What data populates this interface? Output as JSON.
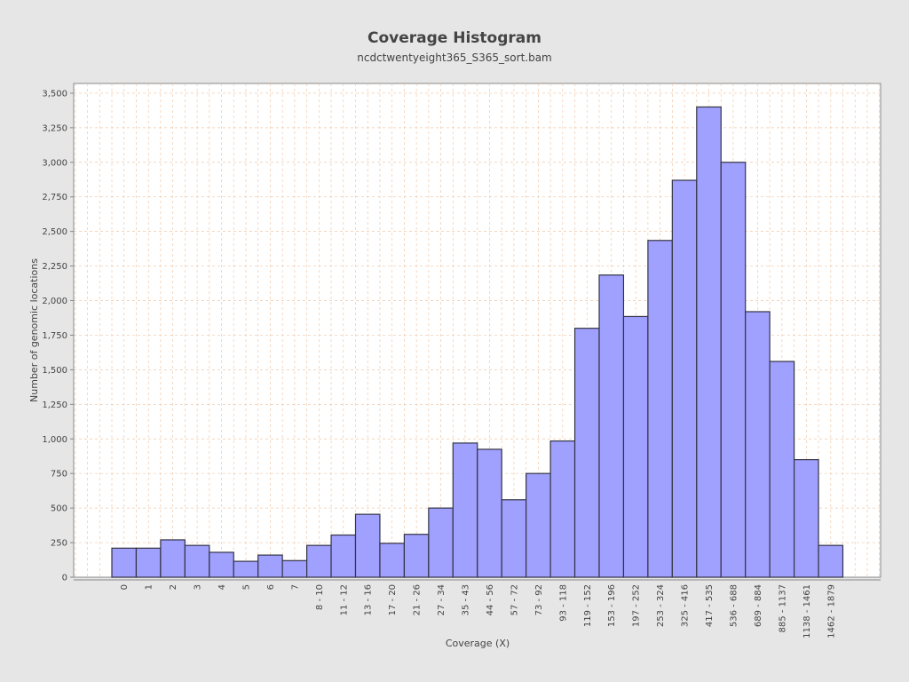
{
  "chart_data": {
    "type": "bar",
    "title": "Coverage Histogram",
    "subtitle": "ncdctwentyeight365_S365_sort.bam",
    "xlabel": "Coverage (X)",
    "ylabel": "Number of genomic locations",
    "ylim": [
      0,
      3570
    ],
    "yticks": [
      0,
      250,
      500,
      750,
      1000,
      1250,
      1500,
      1750,
      2000,
      2250,
      2500,
      2750,
      3000,
      3250,
      3500
    ],
    "ytick_labels": [
      "0",
      "250",
      "500",
      "750",
      "1,000",
      "1,250",
      "1,500",
      "1,750",
      "2,000",
      "2,250",
      "2,500",
      "2,750",
      "3,000",
      "3,250",
      "3,500"
    ],
    "grid": true,
    "categories": [
      "0",
      "1",
      "2",
      "3",
      "4",
      "5",
      "6",
      "7",
      "8 - 10",
      "11 - 12",
      "13 - 16",
      "17 - 20",
      "21 - 26",
      "27 - 34",
      "35 - 43",
      "44 - 56",
      "57 - 72",
      "73 - 92",
      "93 - 118",
      "119 - 152",
      "153 - 196",
      "197 - 252",
      "253 - 324",
      "325 - 416",
      "417 - 535",
      "536 - 688",
      "689 - 884",
      "885 - 1137",
      "1138 - 1461",
      "1462 - 1879"
    ],
    "values": [
      210,
      210,
      270,
      230,
      180,
      115,
      160,
      120,
      230,
      305,
      455,
      245,
      310,
      500,
      970,
      925,
      560,
      750,
      985,
      1800,
      2185,
      1885,
      2435,
      2870,
      3400,
      3000,
      1920,
      1560,
      850,
      230
    ],
    "colors": {
      "background": "#e6e6e6",
      "plot_background": "#ffffff",
      "bar_fill": "#a0a0ff",
      "bar_stroke": "#333344",
      "grid": "#f0c8a8"
    }
  }
}
